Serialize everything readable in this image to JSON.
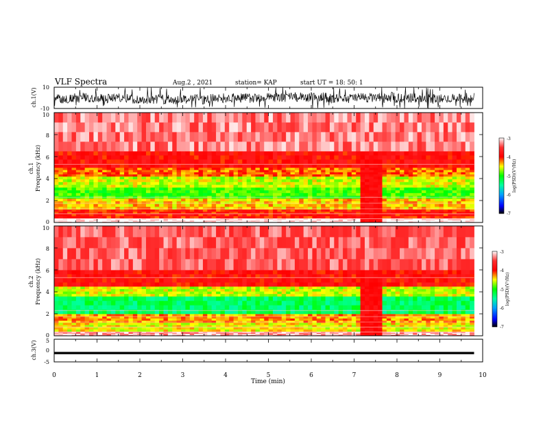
{
  "header": {
    "title": "VLF Spectra",
    "date": "Aug.2 , 2021",
    "station": "station= KAP",
    "start": "start UT = 18: 50: 1"
  },
  "chart_data": [
    {
      "type": "line",
      "panel": "ch1-waveform",
      "ylabel": "ch.1(V)",
      "ylim": [
        -10,
        10
      ],
      "yticks": [
        "10",
        "-10"
      ],
      "xlim": [
        0,
        10
      ],
      "data_end_min": 9.8,
      "color": "#000000"
    },
    {
      "type": "heatmap",
      "panel": "ch1-spectrogram",
      "ylabel": [
        "ch.1",
        "Frequency (kHz)"
      ],
      "ylim": [
        0,
        10
      ],
      "yticks": [
        "0",
        "2",
        "4",
        "6",
        "8",
        "10"
      ],
      "xlim": [
        0,
        10
      ],
      "data_end_min": 9.8,
      "bands": [
        {
          "f0": 0.0,
          "f1": 0.4,
          "level": -3.0
        },
        {
          "f0": 0.4,
          "f1": 1.2,
          "level": -4.0
        },
        {
          "f0": 1.2,
          "f1": 2.2,
          "level": -4.4
        },
        {
          "f0": 2.2,
          "f1": 3.2,
          "level": -4.9
        },
        {
          "f0": 3.2,
          "f1": 4.2,
          "level": -4.6
        },
        {
          "f0": 4.2,
          "f1": 5.0,
          "level": -4.2
        },
        {
          "f0": 5.0,
          "f1": 6.5,
          "level": -3.9
        },
        {
          "f0": 6.5,
          "f1": 10.0,
          "level": -3.3
        }
      ],
      "quiet_interval": {
        "t0": 7.15,
        "t1": 7.7,
        "level": -3.9
      }
    },
    {
      "type": "heatmap",
      "panel": "ch2-spectrogram",
      "ylabel": [
        "ch.2",
        "Frequency (kHz)"
      ],
      "ylim": [
        0,
        10
      ],
      "yticks": [
        "0",
        "2",
        "4",
        "6",
        "8",
        "10"
      ],
      "xlim": [
        0,
        10
      ],
      "data_end_min": 9.8,
      "bands": [
        {
          "f0": 0.0,
          "f1": 0.4,
          "level": -3.2
        },
        {
          "f0": 0.4,
          "f1": 1.2,
          "level": -4.5
        },
        {
          "f0": 1.2,
          "f1": 2.0,
          "level": -4.3
        },
        {
          "f0": 2.0,
          "f1": 3.6,
          "level": -5.3
        },
        {
          "f0": 3.6,
          "f1": 4.5,
          "level": -4.6
        },
        {
          "f0": 4.5,
          "f1": 6.0,
          "level": -3.9
        },
        {
          "f0": 6.0,
          "f1": 10.0,
          "level": -3.4
        }
      ],
      "quiet_interval": {
        "t0": 7.15,
        "t1": 7.7,
        "level": -3.9
      }
    },
    {
      "type": "line",
      "panel": "ch3-waveform",
      "ylabel": "ch.3(V)",
      "ylim": [
        -5,
        5
      ],
      "yticks": [
        "5",
        "0",
        "-5"
      ],
      "xlim": [
        0,
        10
      ],
      "data_end_min": 9.8,
      "color": "#000000"
    }
  ],
  "xaxis": {
    "label": "Time (min)",
    "ticks": [
      "0",
      "1",
      "2",
      "3",
      "4",
      "5",
      "6",
      "7",
      "8",
      "9",
      "10"
    ]
  },
  "colorbar": {
    "label": "log(PSD)(V²/Hz)",
    "range": [
      -7,
      -3
    ],
    "ticks": [
      "-3",
      "-4",
      "-5",
      "-6",
      "-7"
    ],
    "stops": [
      {
        "v": -7.0,
        "color": "#000000"
      },
      {
        "v": -6.6,
        "color": "#0000ff"
      },
      {
        "v": -6.0,
        "color": "#00a0ff"
      },
      {
        "v": -5.5,
        "color": "#00ffa0"
      },
      {
        "v": -5.0,
        "color": "#00ff00"
      },
      {
        "v": -4.5,
        "color": "#ffff00"
      },
      {
        "v": -4.0,
        "color": "#ff0000"
      },
      {
        "v": -3.5,
        "color": "#ff3030"
      },
      {
        "v": -3.0,
        "color": "#ffffff"
      }
    ]
  }
}
